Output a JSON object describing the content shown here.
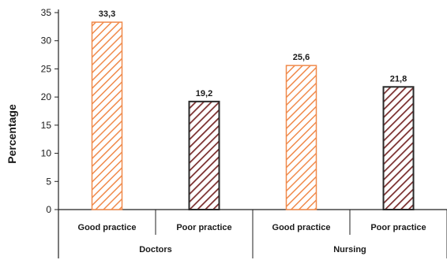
{
  "chart_data": {
    "type": "bar",
    "ylabel": "Percentage",
    "xlabel": "",
    "ylim": [
      0,
      35
    ],
    "yticks": [
      "0",
      "5",
      "10",
      "15",
      "20",
      "25",
      "30",
      "35"
    ],
    "grid": false,
    "legend": "none",
    "categories": [
      "Good practice",
      "Poor practice",
      "Good practice",
      "Poor practice"
    ],
    "groups": [
      {
        "label": "Doctors",
        "categories": [
          "Good practice",
          "Poor practice"
        ]
      },
      {
        "label": "Nursing",
        "categories": [
          "Good practice",
          "Poor practice"
        ]
      }
    ],
    "values": [
      33.3,
      19.2,
      25.6,
      21.8
    ],
    "value_labels": [
      "33,3",
      "19,2",
      "25,6",
      "21,8"
    ],
    "colors": {
      "good_practice": "#f08a4b",
      "poor_practice": "#7a2e2e"
    }
  }
}
